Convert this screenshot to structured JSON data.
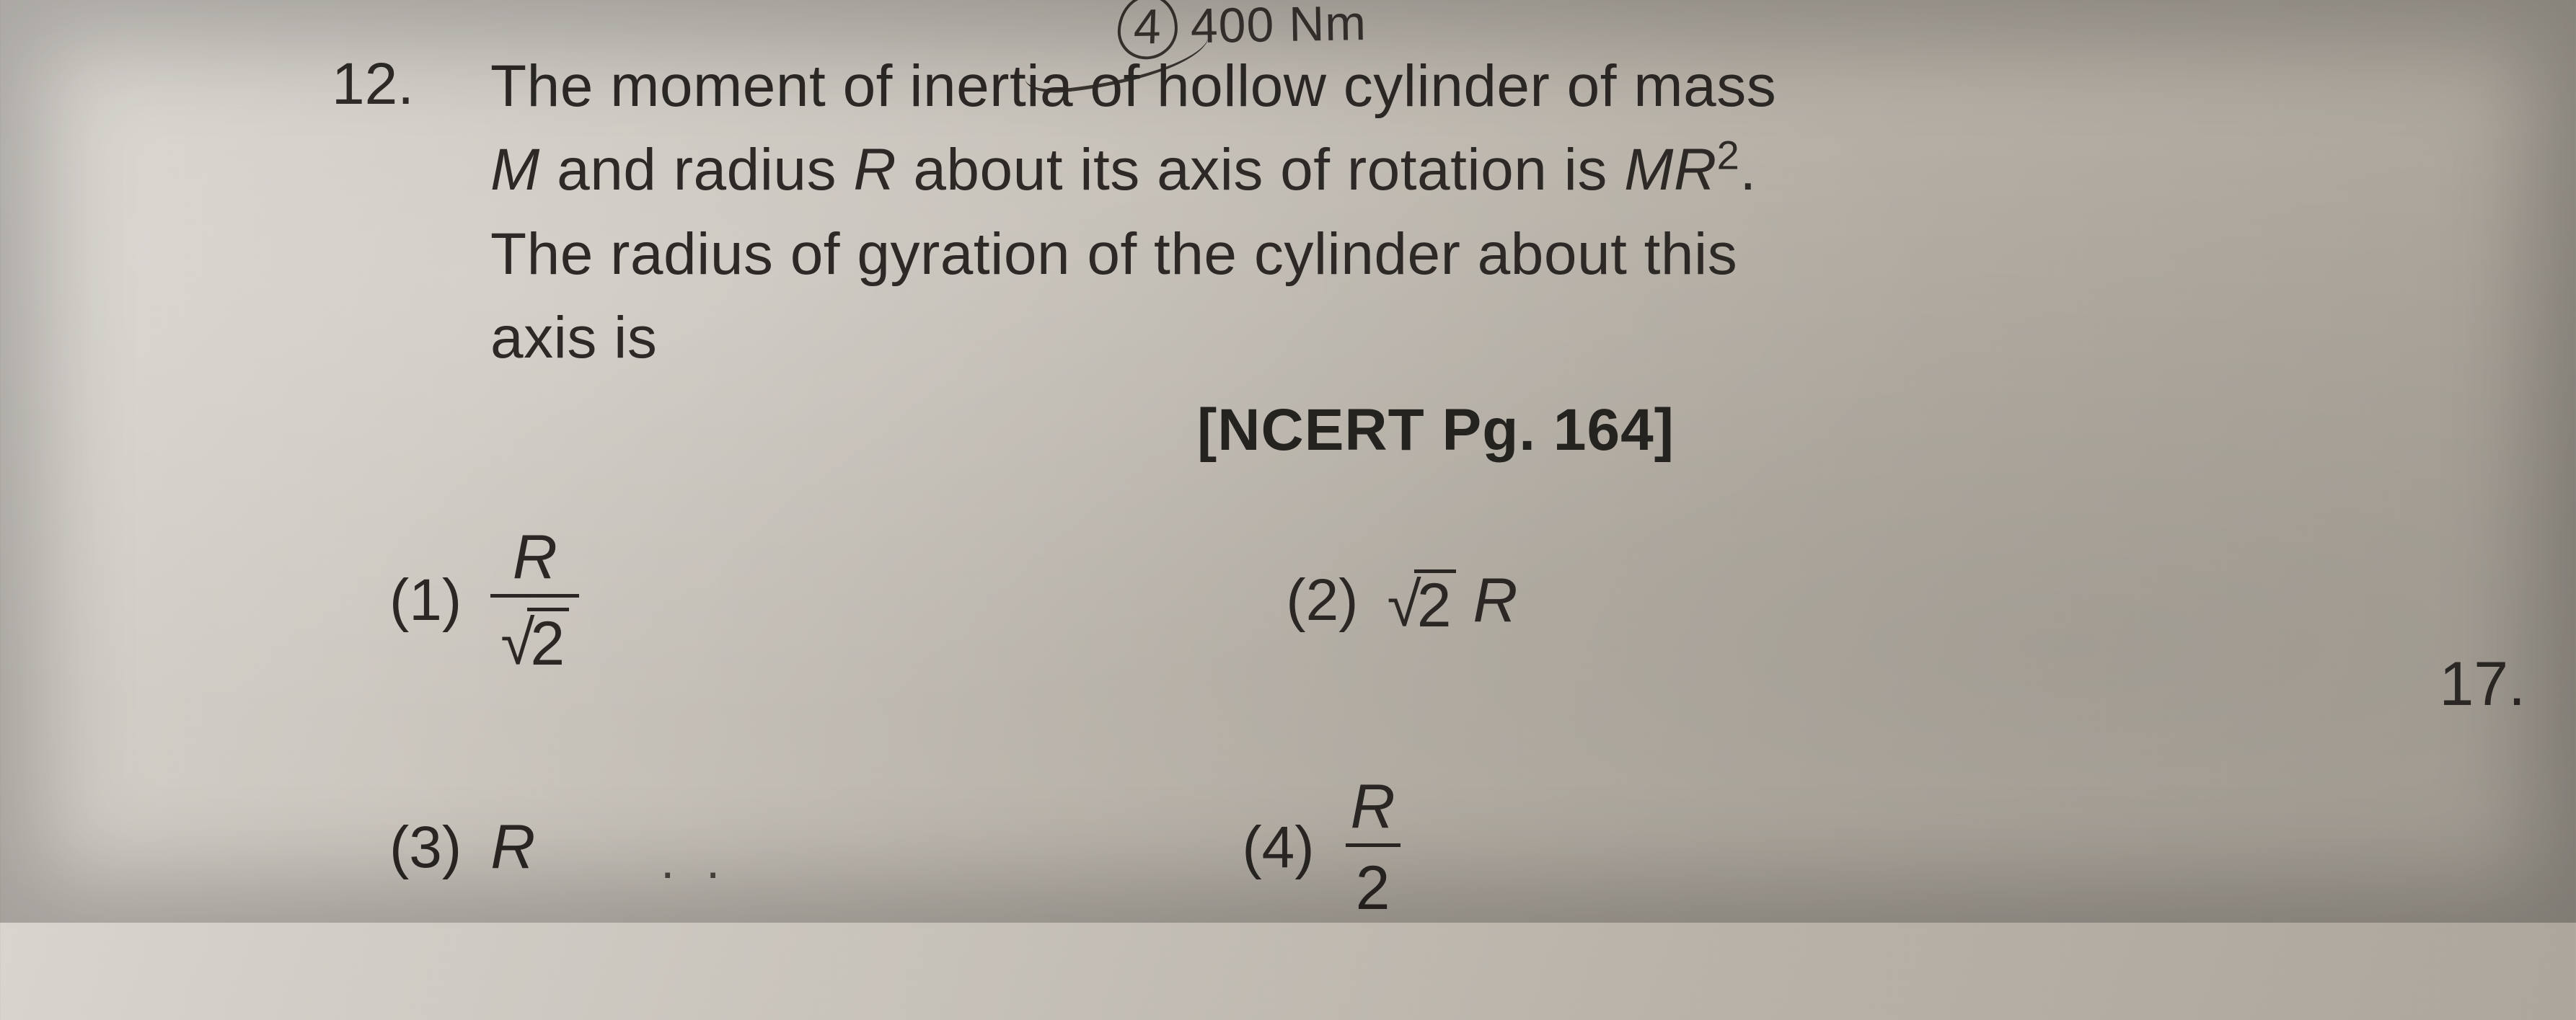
{
  "fragment_top": {
    "option_number": "4",
    "value": "400 Nm"
  },
  "question": {
    "number": "12.",
    "line1_a": "The moment of inertia of hollow cylinder of mass",
    "line2_a": "M",
    "line2_b": " and radius ",
    "line2_c": "R",
    "line2_d": " about its axis of rotation is ",
    "line2_e": "MR",
    "line2_sup": "2",
    "line2_f": ".",
    "line3": "The radius of gyration of the cylinder about this",
    "line4": "axis is"
  },
  "reference": "[NCERT Pg. 164]",
  "options": {
    "o1": {
      "label": "(1)",
      "num": "R",
      "den_radicand": "2"
    },
    "o2": {
      "label": "(2)",
      "radicand": "2",
      "after": " R"
    },
    "o3": {
      "label": "(3)",
      "value": "R"
    },
    "o4": {
      "label": "(4)",
      "num": "R",
      "den": "2"
    }
  },
  "next_question_number": "17.",
  "dots": ". ."
}
